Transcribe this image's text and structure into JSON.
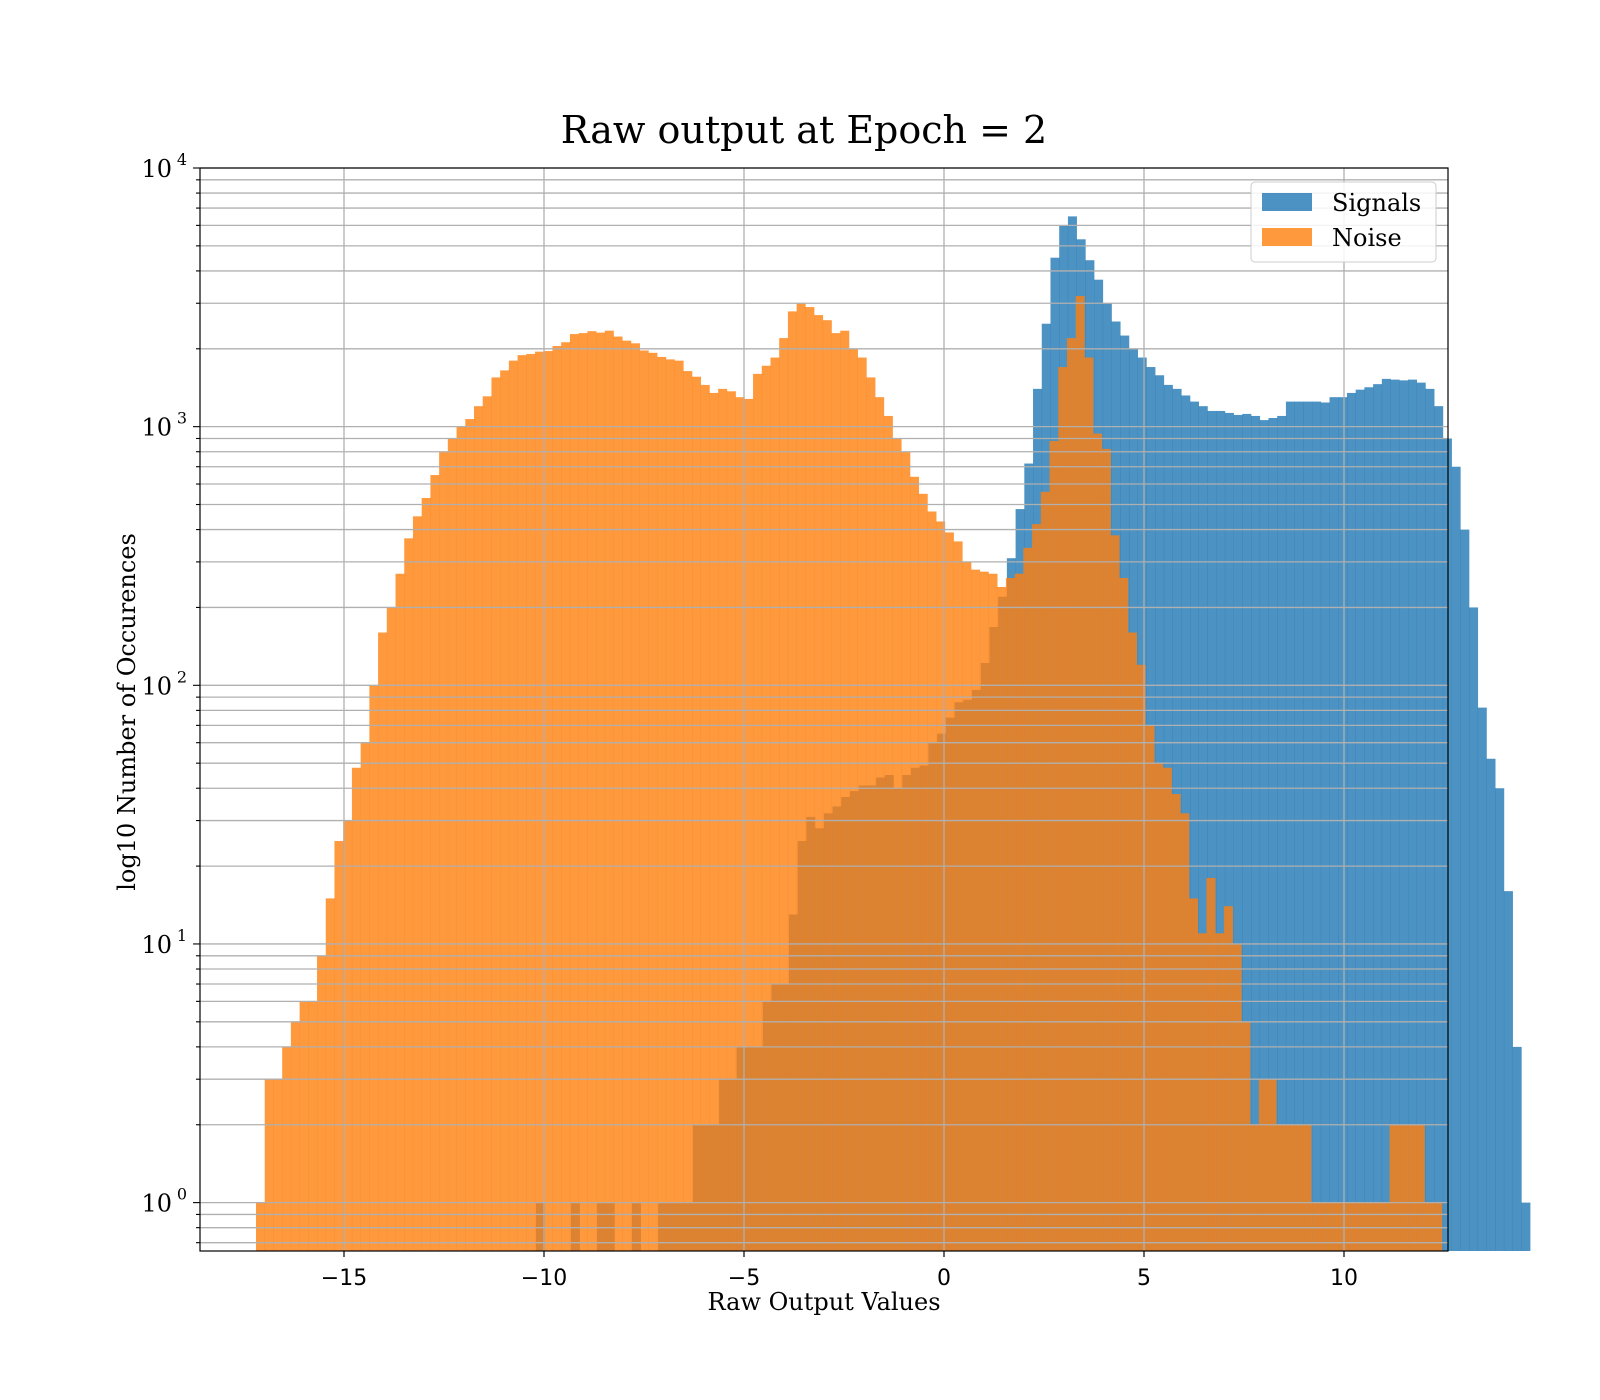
{
  "chart_data": {
    "type": "bar",
    "subtype": "histogram",
    "title": "Raw output at Epoch = 2",
    "xlabel": "Raw Output Values",
    "ylabel": "log10 Number of Occurences",
    "xlim": [
      -18.6,
      12.6
    ],
    "ylim": [
      0.65,
      10000
    ],
    "yscale": "log",
    "grid": true,
    "legend": "top-right",
    "x_ticks": [
      -15,
      -10,
      -5,
      0,
      5,
      10
    ],
    "x_tick_labels": [
      "−15",
      "−10",
      "−5",
      "0",
      "5",
      "10"
    ],
    "y_ticks": [
      1,
      10,
      100,
      1000,
      10000
    ],
    "y_tick_labels": [
      {
        "base": "10",
        "exp": "0"
      },
      {
        "base": "10",
        "exp": "1"
      },
      {
        "base": "10",
        "exp": "2"
      },
      {
        "base": "10",
        "exp": "3"
      },
      {
        "base": "10",
        "exp": "4"
      }
    ],
    "series": [
      {
        "name": "Signals",
        "color": "#1f77b4",
        "opacity": 0.8,
        "bin_start": -10.2,
        "bin_width": 0.218,
        "values": [
          1,
          0,
          0,
          0,
          1,
          0,
          0,
          1,
          1,
          0,
          0,
          1,
          0,
          0,
          1,
          1,
          1,
          1,
          2,
          2,
          2,
          3,
          3,
          4,
          4,
          4,
          6,
          7,
          7,
          13,
          25,
          31,
          28,
          32,
          34,
          37,
          39,
          41,
          41,
          44,
          45,
          40,
          45,
          48,
          49,
          60,
          65,
          75,
          86,
          88,
          96,
          122,
          168,
          220,
          310,
          480,
          720,
          1400,
          2500,
          4500,
          6000,
          6500,
          5300,
          4400,
          3700,
          3000,
          2550,
          2250,
          2000,
          1850,
          1700,
          1580,
          1450,
          1400,
          1320,
          1250,
          1200,
          1150,
          1150,
          1130,
          1110,
          1120,
          1100,
          1060,
          1080,
          1100,
          1250,
          1250,
          1250,
          1250,
          1240,
          1300,
          1300,
          1350,
          1390,
          1420,
          1460,
          1530,
          1520,
          1510,
          1520,
          1480,
          1400,
          1200,
          900,
          700,
          400,
          200,
          82,
          52,
          40,
          16,
          4,
          1
        ]
      },
      {
        "name": "Noise",
        "color": "#ff7f0e",
        "opacity": 0.8,
        "bin_start": -17.2,
        "bin_width": 0.218,
        "values": [
          1,
          3,
          3,
          4,
          5,
          6,
          6,
          9,
          15,
          25,
          30,
          48,
          60,
          100,
          160,
          200,
          270,
          370,
          450,
          530,
          650,
          800,
          900,
          1000,
          1070,
          1200,
          1310,
          1550,
          1650,
          1800,
          1890,
          1910,
          1950,
          1960,
          2050,
          2120,
          2280,
          2300,
          2340,
          2310,
          2350,
          2230,
          2150,
          2100,
          1970,
          1930,
          1860,
          1820,
          1800,
          1640,
          1560,
          1450,
          1350,
          1400,
          1370,
          1300,
          1280,
          1600,
          1720,
          1850,
          2200,
          2790,
          3000,
          2900,
          2700,
          2580,
          2300,
          2350,
          2000,
          1850,
          1550,
          1300,
          1100,
          900,
          800,
          640,
          550,
          470,
          430,
          390,
          360,
          300,
          280,
          275,
          270,
          240,
          260,
          270,
          340,
          420,
          560,
          880,
          1700,
          2200,
          3200,
          1850,
          940,
          820,
          380,
          260,
          160,
          120,
          70,
          50,
          48,
          38,
          32,
          15,
          11,
          18,
          11,
          14,
          10,
          5,
          2,
          3,
          3,
          2,
          2,
          2,
          2,
          1,
          1,
          1,
          1,
          1,
          1,
          1,
          1,
          1,
          2,
          2,
          2,
          2,
          1,
          1
        ]
      }
    ]
  }
}
